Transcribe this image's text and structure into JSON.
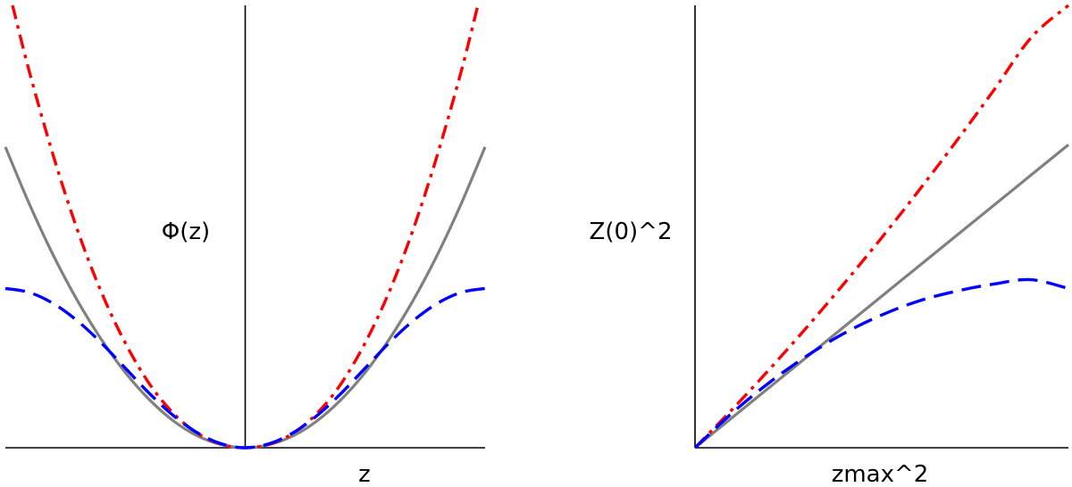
{
  "chart_data": [
    {
      "type": "line",
      "title": "",
      "xlabel": "z",
      "ylabel": "Φ(z)",
      "xlim": [
        -1,
        1
      ],
      "ylim": [
        0,
        1
      ],
      "grid": false,
      "legend": "none",
      "series": [
        {
          "color": "#808080",
          "style": "solid",
          "x": [
            -1,
            -0.9,
            -0.8,
            -0.7,
            -0.6,
            -0.5,
            -0.4,
            -0.3,
            -0.2,
            -0.1,
            0,
            0.1,
            0.2,
            0.3,
            0.4,
            0.5,
            0.6,
            0.7,
            0.8,
            0.9,
            1
          ],
          "y": [
            0.68,
            0.551,
            0.435,
            0.333,
            0.245,
            0.17,
            0.109,
            0.061,
            0.027,
            0.007,
            0,
            0.007,
            0.027,
            0.061,
            0.109,
            0.17,
            0.245,
            0.333,
            0.435,
            0.551,
            0.68
          ]
        },
        {
          "color": "#ff0000",
          "style": "dash-dot",
          "x": [
            -0.97,
            -0.9,
            -0.8,
            -0.7,
            -0.6,
            -0.5,
            -0.4,
            -0.3,
            -0.2,
            -0.1,
            0,
            0.1,
            0.2,
            0.3,
            0.4,
            0.5,
            0.6,
            0.7,
            0.8,
            0.9,
            0.97
          ],
          "y": [
            1.0,
            0.85,
            0.66,
            0.493,
            0.352,
            0.237,
            0.145,
            0.078,
            0.033,
            0.008,
            0,
            0.008,
            0.033,
            0.078,
            0.145,
            0.237,
            0.352,
            0.493,
            0.66,
            0.85,
            1.0
          ]
        },
        {
          "color": "#0000ff",
          "style": "dashed",
          "x": [
            -1,
            -0.9,
            -0.8,
            -0.7,
            -0.6,
            -0.5,
            -0.4,
            -0.3,
            -0.2,
            -0.1,
            0,
            0.1,
            0.2,
            0.3,
            0.4,
            0.5,
            0.6,
            0.7,
            0.8,
            0.9,
            1
          ],
          "y": [
            0.36,
            0.351,
            0.326,
            0.287,
            0.237,
            0.18,
            0.123,
            0.073,
            0.034,
            0.009,
            0,
            0.009,
            0.034,
            0.073,
            0.123,
            0.18,
            0.237,
            0.287,
            0.326,
            0.351,
            0.36
          ]
        }
      ]
    },
    {
      "type": "line",
      "title": "",
      "xlabel": "zmax^2",
      "ylabel": "Z(0)^2",
      "xlim": [
        0,
        1
      ],
      "ylim": [
        0,
        1
      ],
      "grid": false,
      "legend": "none",
      "series": [
        {
          "color": "#808080",
          "style": "solid",
          "x": [
            0,
            1
          ],
          "y": [
            0,
            0.685
          ]
        },
        {
          "color": "#ff0000",
          "style": "dash-dot",
          "x": [
            0,
            0.1,
            0.2,
            0.3,
            0.4,
            0.5,
            0.6,
            0.7,
            0.8,
            0.9,
            1
          ],
          "y": [
            0,
            0.087,
            0.178,
            0.273,
            0.372,
            0.475,
            0.582,
            0.693,
            0.808,
            0.927,
            1.0
          ]
        },
        {
          "color": "#0000ff",
          "style": "dashed",
          "x": [
            0,
            0.1,
            0.2,
            0.3,
            0.4,
            0.5,
            0.6,
            0.7,
            0.8,
            0.9,
            1
          ],
          "y": [
            0,
            0.079,
            0.148,
            0.208,
            0.259,
            0.3,
            0.332,
            0.354,
            0.37,
            0.38,
            0.36
          ]
        }
      ]
    }
  ]
}
